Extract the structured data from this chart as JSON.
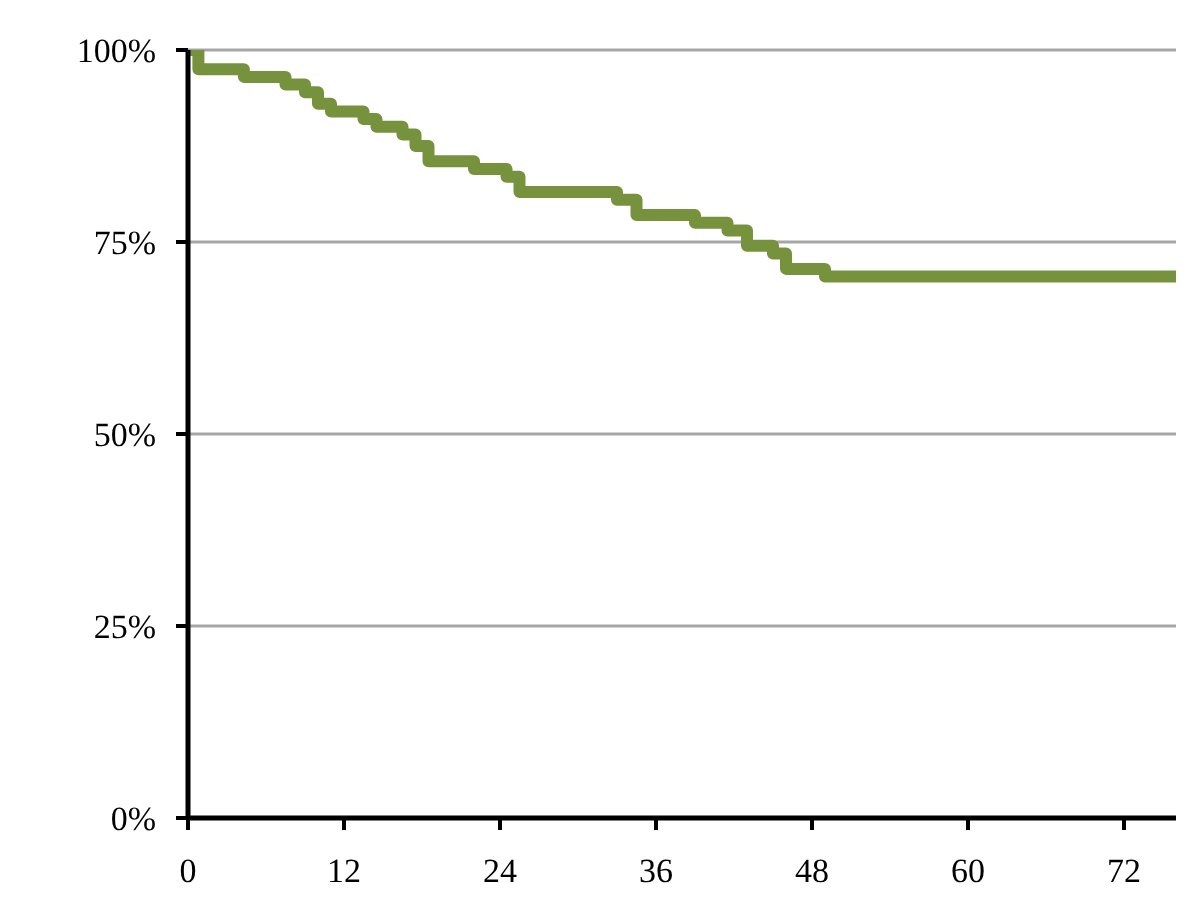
{
  "chart_data": {
    "type": "step",
    "x": [
      0,
      0.8,
      4.3,
      7.5,
      9,
      10,
      11,
      13.5,
      14.5,
      16.5,
      17.5,
      18.5,
      22,
      24.5,
      25.5,
      33,
      34.5,
      39,
      41.5,
      43,
      45,
      46,
      49,
      76
    ],
    "values": [
      100,
      97.5,
      96.5,
      95.5,
      94.5,
      93,
      92,
      91,
      90,
      89,
      87.5,
      85.5,
      84.5,
      83.5,
      81.5,
      80.5,
      78.5,
      77.5,
      76.5,
      74.5,
      73.5,
      71.5,
      70.5,
      70.5
    ],
    "color": "#76923c",
    "xlim": [
      0,
      76
    ],
    "xticks": [
      0,
      12,
      24,
      36,
      48,
      60,
      72
    ],
    "ylim": [
      0,
      100
    ],
    "yticks": [
      {
        "value": 0,
        "label": "0%"
      },
      {
        "value": 25,
        "label": "25%"
      },
      {
        "value": 50,
        "label": "50%"
      },
      {
        "value": 75,
        "label": "75%"
      },
      {
        "value": 100,
        "label": "100%"
      }
    ],
    "grid": "y",
    "legend": false,
    "marker": "none",
    "line_style": "solid"
  }
}
